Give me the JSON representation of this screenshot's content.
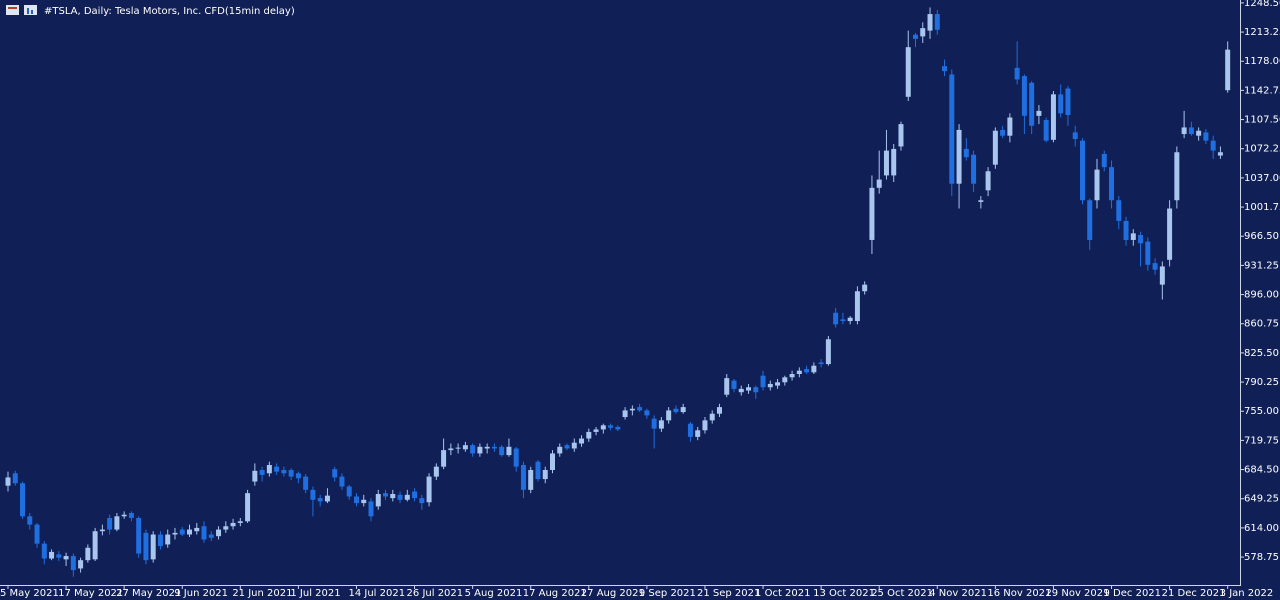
{
  "chart_data": {
    "type": "candlestick",
    "title": "#TSLA, Daily:  Tesla Motors, Inc.  CFD(15min delay)",
    "up_color": "#a9c6ee",
    "down_color": "#1f6fe0",
    "ylim": [
      545,
      1252
    ],
    "yticks": [
      {
        "value": 578.75,
        "label": "578.75"
      },
      {
        "value": 614,
        "label": "614.00"
      },
      {
        "value": 649.25,
        "label": "649.25"
      },
      {
        "value": 684.5,
        "label": "684.50"
      },
      {
        "value": 719.75,
        "label": "719.75"
      },
      {
        "value": 755,
        "label": "755.00"
      },
      {
        "value": 790.25,
        "label": "790.25"
      },
      {
        "value": 825.5,
        "label": "825.50"
      },
      {
        "value": 860.75,
        "label": "860.75"
      },
      {
        "value": 896,
        "label": "896.00"
      },
      {
        "value": 931.25,
        "label": "931.25"
      },
      {
        "value": 966.5,
        "label": "966.50"
      },
      {
        "value": 1001.75,
        "label": "1001.75"
      },
      {
        "value": 1037,
        "label": "1037.00"
      },
      {
        "value": 1072.25,
        "label": "1072.25"
      },
      {
        "value": 1107.5,
        "label": "1107.50"
      },
      {
        "value": 1142.75,
        "label": "1142.75"
      },
      {
        "value": 1178,
        "label": "1178.00"
      },
      {
        "value": 1213.25,
        "label": "1213.25"
      },
      {
        "value": 1248.5,
        "label": "1248.50"
      }
    ],
    "categories": [
      "5 May 2021",
      null,
      null,
      null,
      null,
      null,
      null,
      null,
      "17 May 2021",
      null,
      null,
      null,
      null,
      null,
      null,
      null,
      "27 May 2021",
      null,
      null,
      null,
      null,
      null,
      null,
      null,
      "9 Jun 2021",
      null,
      null,
      null,
      null,
      null,
      null,
      null,
      "21 Jun 2021",
      null,
      null,
      null,
      null,
      null,
      null,
      null,
      "1 Jul 2021",
      null,
      null,
      null,
      null,
      null,
      null,
      null,
      "14 Jul 2021",
      null,
      null,
      null,
      null,
      null,
      null,
      null,
      "26 Jul 2021",
      null,
      null,
      null,
      null,
      null,
      null,
      null,
      "5 Aug 2021",
      null,
      null,
      null,
      null,
      null,
      null,
      null,
      "17 Aug 2021",
      null,
      null,
      null,
      null,
      null,
      null,
      null,
      "27 Aug 2021",
      null,
      null,
      null,
      null,
      null,
      null,
      null,
      "9 Sep 2021",
      null,
      null,
      null,
      null,
      null,
      null,
      null,
      "21 Sep 2021",
      null,
      null,
      null,
      null,
      null,
      null,
      null,
      "1 Oct 2021",
      null,
      null,
      null,
      null,
      null,
      null,
      null,
      "13 Oct 2021",
      null,
      null,
      null,
      null,
      null,
      null,
      null,
      "25 Oct 2021",
      null,
      null,
      null,
      null,
      null,
      null,
      null,
      "4 Nov 2021",
      null,
      null,
      null,
      null,
      null,
      null,
      null,
      "16 Nov 2021",
      null,
      null,
      null,
      null,
      null,
      null,
      null,
      "29 Nov 2021",
      null,
      null,
      null,
      null,
      null,
      null,
      null,
      "9 Dec 2021",
      null,
      null,
      null,
      null,
      null,
      null,
      null,
      "21 Dec 2021",
      null,
      null,
      null,
      null,
      null,
      null,
      null,
      "3 Jan 2022"
    ],
    "open": [
      665,
      680,
      668,
      628,
      618,
      595,
      577,
      582,
      576,
      580,
      565,
      575,
      576,
      610,
      626,
      612,
      628,
      632,
      626,
      608,
      576,
      606,
      594,
      606,
      612,
      606,
      610,
      616,
      606,
      604,
      612,
      616,
      620,
      622,
      670,
      684,
      680,
      688,
      684,
      684,
      680,
      676,
      660,
      650,
      646,
      685,
      676,
      664,
      652,
      644,
      646,
      640,
      656,
      650,
      654,
      648,
      658,
      650,
      645,
      676,
      688,
      708,
      710,
      709,
      714,
      704,
      710,
      712,
      712,
      702,
      710,
      690,
      660,
      694,
      673,
      684,
      704,
      714,
      710,
      716,
      722,
      730,
      733,
      738,
      736,
      748,
      756,
      760,
      756,
      746,
      734,
      744,
      758,
      754,
      740,
      724,
      732,
      744,
      752,
      775,
      792,
      778,
      780,
      784,
      798,
      784,
      786,
      790,
      796,
      800,
      806,
      802,
      814,
      812,
      874,
      866,
      864,
      864,
      900,
      962,
      1025,
      1040,
      1040,
      1075,
      1135,
      1210,
      1208,
      1215,
      1235,
      1172,
      1162,
      1030,
      1072,
      1065,
      1008,
      1022,
      1053,
      1095,
      1088,
      1170,
      1160,
      1152,
      1112,
      1107,
      1083,
      1138,
      1145,
      1092,
      1082,
      1010,
      1010,
      1066,
      1050,
      1010,
      985,
      962,
      968,
      960,
      934,
      908,
      938,
      1010,
      1090,
      1098,
      1088,
      1092,
      1082,
      1064,
      1143
    ],
    "high": [
      682,
      683,
      670,
      632,
      620,
      598,
      588,
      586,
      584,
      583,
      578,
      594,
      614,
      618,
      630,
      632,
      634,
      634,
      628,
      612,
      610,
      610,
      612,
      614,
      615,
      618,
      620,
      622,
      610,
      616,
      622,
      625,
      626,
      660,
      692,
      688,
      694,
      692,
      688,
      686,
      682,
      679,
      664,
      654,
      662,
      688,
      680,
      666,
      656,
      654,
      650,
      660,
      660,
      660,
      658,
      660,
      662,
      654,
      680,
      692,
      722,
      716,
      716,
      718,
      716,
      716,
      716,
      716,
      714,
      722,
      712,
      694,
      688,
      696,
      688,
      708,
      716,
      716,
      722,
      726,
      734,
      736,
      740,
      740,
      738,
      760,
      762,
      764,
      758,
      750,
      748,
      760,
      762,
      764,
      742,
      736,
      748,
      756,
      764,
      800,
      794,
      786,
      788,
      786,
      804,
      792,
      794,
      798,
      804,
      808,
      810,
      814,
      818,
      846,
      880,
      874,
      870,
      906,
      912,
      1040,
      1070,
      1095,
      1078,
      1105,
      1215,
      1212,
      1225,
      1243,
      1240,
      1180,
      1168,
      1102,
      1085,
      1070,
      1015,
      1050,
      1098,
      1100,
      1115,
      1202,
      1162,
      1154,
      1125,
      1110,
      1142,
      1150,
      1148,
      1100,
      1085,
      1012,
      1060,
      1070,
      1058,
      1015,
      990,
      975,
      972,
      965,
      940,
      936,
      1010,
      1075,
      1118,
      1105,
      1098,
      1096,
      1088,
      1075,
      1202
    ],
    "low": [
      658,
      665,
      625,
      612,
      590,
      570,
      575,
      574,
      568,
      555,
      560,
      572,
      574,
      605,
      606,
      610,
      625,
      622,
      578,
      570,
      572,
      588,
      590,
      600,
      604,
      603,
      606,
      596,
      598,
      600,
      608,
      612,
      616,
      620,
      665,
      670,
      676,
      678,
      676,
      672,
      668,
      656,
      628,
      640,
      644,
      670,
      660,
      648,
      640,
      640,
      622,
      636,
      648,
      646,
      644,
      646,
      646,
      636,
      640,
      672,
      685,
      702,
      704,
      706,
      700,
      700,
      704,
      706,
      700,
      700,
      682,
      650,
      656,
      670,
      668,
      680,
      700,
      708,
      706,
      712,
      718,
      726,
      728,
      732,
      731,
      745,
      750,
      754,
      746,
      710,
      730,
      740,
      752,
      752,
      718,
      720,
      728,
      740,
      748,
      772,
      778,
      774,
      776,
      770,
      780,
      780,
      782,
      786,
      792,
      796,
      800,
      800,
      808,
      810,
      856,
      860,
      860,
      860,
      896,
      945,
      1018,
      1035,
      1032,
      1070,
      1130,
      1195,
      1200,
      1205,
      1210,
      1160,
      1015,
      1000,
      1058,
      1020,
      1000,
      1015,
      1048,
      1085,
      1080,
      1150,
      1090,
      1090,
      1102,
      1080,
      1080,
      1110,
      1100,
      1075,
      1005,
      950,
      1000,
      1045,
      1000,
      975,
      955,
      955,
      930,
      925,
      920,
      890,
      930,
      1000,
      1085,
      1088,
      1082,
      1078,
      1060,
      1060,
      1140
    ],
    "close": [
      675,
      668,
      628,
      618,
      595,
      577,
      585,
      578,
      580,
      563,
      575,
      590,
      610,
      612,
      612,
      628,
      630,
      626,
      583,
      575,
      606,
      592,
      606,
      608,
      606,
      612,
      614,
      600,
      602,
      612,
      616,
      620,
      622,
      656,
      683,
      678,
      690,
      682,
      680,
      676,
      674,
      660,
      648,
      646,
      653,
      675,
      664,
      652,
      644,
      648,
      628,
      655,
      652,
      655,
      648,
      654,
      650,
      644,
      676,
      688,
      708,
      710,
      711,
      714,
      704,
      712,
      712,
      710,
      702,
      712,
      688,
      660,
      684,
      673,
      684,
      704,
      712,
      710,
      717,
      722,
      730,
      733,
      738,
      735,
      733,
      756,
      758,
      756,
      750,
      734,
      744,
      756,
      754,
      760,
      724,
      732,
      744,
      752,
      760,
      795,
      782,
      782,
      784,
      778,
      784,
      788,
      790,
      796,
      800,
      804,
      802,
      810,
      812,
      842,
      860,
      864,
      868,
      900,
      908,
      1025,
      1035,
      1070,
      1072,
      1102,
      1195,
      1205,
      1218,
      1235,
      1216,
      1166,
      1030,
      1095,
      1062,
      1030,
      1010,
      1045,
      1094,
      1088,
      1110,
      1156,
      1112,
      1100,
      1118,
      1082,
      1138,
      1115,
      1113,
      1084,
      1010,
      962,
      1047,
      1050,
      1010,
      985,
      962,
      970,
      958,
      932,
      926,
      930,
      1000,
      1068,
      1098,
      1090,
      1094,
      1082,
      1070,
      1068,
      1192
    ]
  }
}
